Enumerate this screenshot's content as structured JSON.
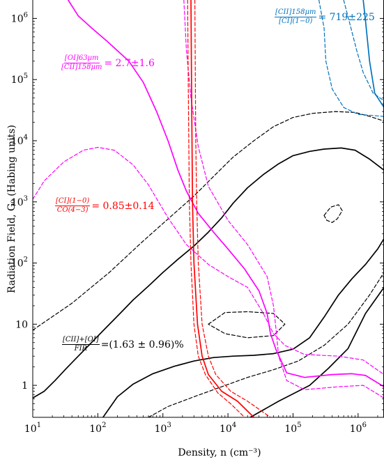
{
  "chart_data": {
    "type": "line",
    "x_scale": "log",
    "y_scale": "log",
    "xlim": [
      10,
      2500000
    ],
    "ylim": [
      0.3,
      2000000
    ],
    "xlabel": "Density, n (cm⁻³)",
    "ylabel": "Radiation Field, G₀ (Habing units)",
    "x_ticks": [
      {
        "value": 10,
        "base": "10",
        "exp": "1"
      },
      {
        "value": 100,
        "base": "10",
        "exp": "2"
      },
      {
        "value": 1000,
        "base": "10",
        "exp": "3"
      },
      {
        "value": 10000,
        "base": "10",
        "exp": "4"
      },
      {
        "value": 100000,
        "base": "10",
        "exp": "5"
      },
      {
        "value": 1000000,
        "base": "10",
        "exp": "6"
      }
    ],
    "y_ticks": [
      {
        "value": 1,
        "base": "1",
        "exp": ""
      },
      {
        "value": 10,
        "base": "10",
        "exp": ""
      },
      {
        "value": 100,
        "base": "10",
        "exp": "2"
      },
      {
        "value": 1000,
        "base": "10",
        "exp": "3"
      },
      {
        "value": 10000,
        "base": "10",
        "exp": "4"
      },
      {
        "value": 100000,
        "base": "10",
        "exp": "5"
      },
      {
        "value": 1000000,
        "base": "10",
        "exp": "6"
      }
    ],
    "grid": false,
    "colors": {
      "black": "#000000",
      "magenta": "#ff00ff",
      "red": "#ff0000",
      "blue": "#0072bd"
    },
    "series": [
      {
        "color": "#000000",
        "style": "solid",
        "points": [
          [
            10,
            0.62
          ],
          [
            15,
            0.8
          ],
          [
            22,
            1.2
          ],
          [
            33,
            1.9
          ],
          [
            50,
            3.0
          ],
          [
            80,
            5.0
          ],
          [
            130,
            8.5
          ],
          [
            220,
            15
          ],
          [
            350,
            25
          ],
          [
            600,
            42
          ],
          [
            1000,
            70
          ],
          [
            1700,
            115
          ],
          [
            3000,
            190
          ],
          [
            5000,
            320
          ],
          [
            8000,
            550
          ],
          [
            12000,
            950
          ],
          [
            20000,
            1700
          ],
          [
            35000,
            2800
          ],
          [
            60000,
            4200
          ],
          [
            100000,
            5700
          ],
          [
            180000,
            6700
          ],
          [
            300000,
            7300
          ],
          [
            550000,
            7600
          ],
          [
            900000,
            7000
          ],
          [
            1500000,
            5000
          ],
          [
            2500000,
            3300
          ]
        ]
      },
      {
        "color": "#000000",
        "style": "solid",
        "points": [
          [
            120,
            0.3
          ],
          [
            200,
            0.65
          ],
          [
            350,
            1.05
          ],
          [
            700,
            1.55
          ],
          [
            1500,
            2.05
          ],
          [
            3000,
            2.5
          ],
          [
            6000,
            2.85
          ],
          [
            12000,
            3.0
          ],
          [
            25000,
            3.1
          ],
          [
            50000,
            3.3
          ],
          [
            100000,
            3.9
          ],
          [
            180000,
            6.0
          ],
          [
            300000,
            13
          ],
          [
            500000,
            30
          ],
          [
            800000,
            55
          ],
          [
            1300000,
            95
          ],
          [
            2000000,
            170
          ],
          [
            2500000,
            250
          ]
        ]
      },
      {
        "color": "#000000",
        "style": "solid",
        "points": [
          [
            22000,
            0.3
          ],
          [
            60000,
            0.55
          ],
          [
            180000,
            1.0
          ],
          [
            350000,
            1.9
          ],
          [
            700000,
            4.0
          ],
          [
            1300000,
            15
          ],
          [
            2500000,
            40
          ]
        ]
      },
      {
        "color": "#000000",
        "style": "dashed",
        "points": [
          [
            10,
            8.0
          ],
          [
            40,
            22
          ],
          [
            150,
            70
          ],
          [
            500,
            230
          ],
          [
            1500,
            650
          ],
          [
            3000,
            1250
          ],
          [
            6000,
            2600
          ],
          [
            12000,
            5400
          ],
          [
            25000,
            10000
          ],
          [
            50000,
            17000
          ],
          [
            100000,
            24000
          ],
          [
            200000,
            28000
          ],
          [
            450000,
            30000
          ],
          [
            900000,
            29000
          ],
          [
            1500000,
            25000
          ],
          [
            2500000,
            21000
          ]
        ]
      },
      {
        "color": "#000000",
        "style": "dashed",
        "points": [
          [
            600,
            0.3
          ],
          [
            1200,
            0.45
          ],
          [
            3000,
            0.65
          ],
          [
            8000,
            0.95
          ],
          [
            20000,
            1.35
          ],
          [
            50000,
            1.8
          ],
          [
            120000,
            2.5
          ],
          [
            300000,
            4.5
          ],
          [
            700000,
            10
          ],
          [
            1500000,
            30
          ],
          [
            2500000,
            70
          ]
        ]
      },
      {
        "color": "#000000",
        "style": "dashed",
        "points": [
          [
            5000,
            10
          ],
          [
            9000,
            15.5
          ],
          [
            20000,
            16
          ],
          [
            50000,
            15
          ],
          [
            75000,
            10
          ],
          [
            50000,
            6.5
          ],
          [
            20000,
            6.0
          ],
          [
            9000,
            7.0
          ],
          [
            5000,
            10
          ]
        ]
      },
      {
        "color": "#000000",
        "style": "dashed",
        "points": [
          [
            300000,
            600
          ],
          [
            380000,
            820
          ],
          [
            500000,
            900
          ],
          [
            570000,
            720
          ],
          [
            480000,
            530
          ],
          [
            400000,
            460
          ],
          [
            330000,
            500
          ],
          [
            300000,
            600
          ]
        ]
      },
      {
        "color": "#ff00ff",
        "style": "solid",
        "points": [
          [
            35,
            2000000
          ],
          [
            50,
            1100000
          ],
          [
            80,
            700000
          ],
          [
            140,
            420000
          ],
          [
            300,
            200000
          ],
          [
            500,
            90000
          ],
          [
            800,
            30000
          ],
          [
            1200,
            10000
          ],
          [
            1700,
            3300
          ],
          [
            2300,
            1500
          ],
          [
            3500,
            650
          ],
          [
            6000,
            320
          ],
          [
            10000,
            170
          ],
          [
            18000,
            80
          ],
          [
            30000,
            35
          ],
          [
            40000,
            15
          ],
          [
            45000,
            7
          ],
          [
            55000,
            3.8
          ],
          [
            80000,
            1.6
          ],
          [
            150000,
            1.35
          ],
          [
            400000,
            1.5
          ],
          [
            800000,
            1.55
          ],
          [
            1300000,
            1.45
          ],
          [
            2500000,
            0.95
          ]
        ]
      },
      {
        "color": "#ff00ff",
        "style": "dashed",
        "points": [
          [
            10,
            1100
          ],
          [
            15,
            2200
          ],
          [
            30,
            4500
          ],
          [
            60,
            7000
          ],
          [
            100,
            7800
          ],
          [
            180,
            7000
          ],
          [
            350,
            4000
          ],
          [
            600,
            1900
          ],
          [
            1200,
            550
          ],
          [
            2300,
            200
          ],
          [
            5000,
            95
          ],
          [
            10000,
            60
          ],
          [
            20000,
            40
          ],
          [
            35000,
            15
          ],
          [
            50000,
            7
          ],
          [
            75000,
            4.5
          ],
          [
            150000,
            3.2
          ],
          [
            500000,
            3.0
          ],
          [
            1200000,
            2.6
          ],
          [
            2500000,
            1.5
          ]
        ]
      },
      {
        "color": "#ff00ff",
        "style": "dashed",
        "points": [
          [
            2100,
            2000000
          ],
          [
            2300,
            300000
          ],
          [
            2700,
            50000
          ],
          [
            3500,
            8000
          ],
          [
            5000,
            1800
          ],
          [
            10000,
            500
          ],
          [
            20000,
            200
          ],
          [
            40000,
            60
          ],
          [
            50000,
            20
          ],
          [
            55000,
            8
          ],
          [
            60000,
            3
          ],
          [
            80000,
            1.2
          ],
          [
            150000,
            0.85
          ],
          [
            500000,
            0.95
          ],
          [
            1200000,
            1.0
          ],
          [
            2500000,
            0.62
          ]
        ]
      },
      {
        "color": "#ff0000",
        "style": "solid",
        "points": [
          [
            2700,
            2000000
          ],
          [
            2750,
            100000
          ],
          [
            2800,
            10000
          ],
          [
            2850,
            1000
          ],
          [
            3000,
            100
          ],
          [
            3400,
            10
          ],
          [
            4000,
            3
          ],
          [
            5000,
            1.5
          ],
          [
            8000,
            0.8
          ],
          [
            14000,
            0.55
          ],
          [
            25000,
            0.3
          ]
        ]
      },
      {
        "color": "#ff0000",
        "style": "dashed",
        "points": [
          [
            2400,
            2000000
          ],
          [
            2450,
            100000
          ],
          [
            2500,
            10000
          ],
          [
            2550,
            1000
          ],
          [
            2700,
            100
          ],
          [
            3000,
            10
          ],
          [
            3500,
            3
          ],
          [
            4500,
            1.5
          ],
          [
            7000,
            0.75
          ],
          [
            11000,
            0.5
          ],
          [
            18000,
            0.3
          ]
        ]
      },
      {
        "color": "#ff0000",
        "style": "dashed",
        "points": [
          [
            3100,
            2000000
          ],
          [
            3150,
            100000
          ],
          [
            3200,
            10000
          ],
          [
            3300,
            1000
          ],
          [
            3500,
            100
          ],
          [
            4000,
            10
          ],
          [
            5000,
            3
          ],
          [
            6500,
            1.5
          ],
          [
            11000,
            0.8
          ],
          [
            20000,
            0.55
          ],
          [
            45000,
            0.3
          ]
        ]
      },
      {
        "color": "#0072bd",
        "style": "solid",
        "points": [
          [
            1200000,
            2000000
          ],
          [
            1300000,
            900000
          ],
          [
            1500000,
            200000
          ],
          [
            1800000,
            60000
          ],
          [
            2500000,
            35000
          ]
        ]
      },
      {
        "color": "#0072bd",
        "style": "dashed",
        "points": [
          [
            600000,
            2000000
          ],
          [
            750000,
            800000
          ],
          [
            950000,
            300000
          ],
          [
            1200000,
            130000
          ],
          [
            1700000,
            60000
          ],
          [
            2500000,
            45000
          ]
        ]
      },
      {
        "color": "#0072bd",
        "style": "dashed",
        "points": [
          [
            250000,
            2000000
          ],
          [
            300000,
            700000
          ],
          [
            320000,
            200000
          ],
          [
            400000,
            70000
          ],
          [
            600000,
            35000
          ],
          [
            1000000,
            27000
          ],
          [
            2500000,
            25000
          ]
        ]
      }
    ],
    "annotations": [
      {
        "num": "[OI]63μm",
        "den": "[CII]158μm",
        "value": "= 2.7±1.6",
        "color": "#ff00ff"
      },
      {
        "num": "[CII]158μm",
        "den": "[CI](1−0)",
        "value": "= 719±225",
        "color": "#0072bd"
      },
      {
        "num": "[CI](1−0)",
        "den": "CO(4−3)",
        "value": "= 0.85±0.14",
        "color": "#ff0000"
      },
      {
        "num": "[CII]+[OI]",
        "den": "FIR",
        "value": "=(1.63 ± 0.96)%",
        "color": "#000000"
      }
    ]
  }
}
